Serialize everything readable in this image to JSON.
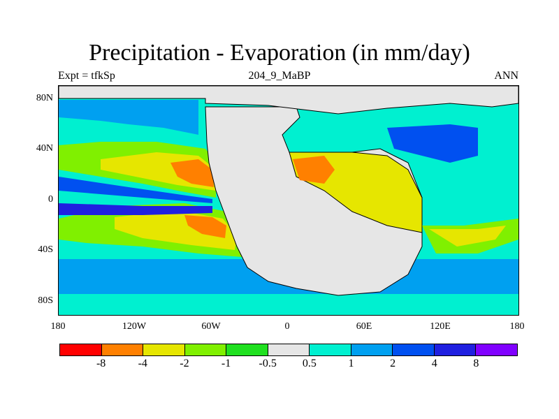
{
  "title": "Precipitation - Evaporation (in mm/day)",
  "expt_label": "Expt = tfkSp",
  "period_label": "204_9_MaBP",
  "season_label": "ANN",
  "y_ticks": [
    "80N",
    "40N",
    "0",
    "40S",
    "80S"
  ],
  "x_ticks": [
    "180",
    "120W",
    "60W",
    "0",
    "60E",
    "120E",
    "180"
  ],
  "colorbar": {
    "colors": [
      "#ff0000",
      "#ff8000",
      "#e6e600",
      "#80f000",
      "#20e020",
      "#e6e6e6",
      "#00f0d0",
      "#00a0f0",
      "#0050f0",
      "#2020e0",
      "#8000ff"
    ],
    "labels": [
      "-8",
      "-4",
      "-2",
      "-1",
      "-0.5",
      "0.5",
      "1",
      "2",
      "4",
      "8"
    ]
  },
  "map_colors": {
    "land": "#e6e6e6",
    "coast": "#000000"
  }
}
